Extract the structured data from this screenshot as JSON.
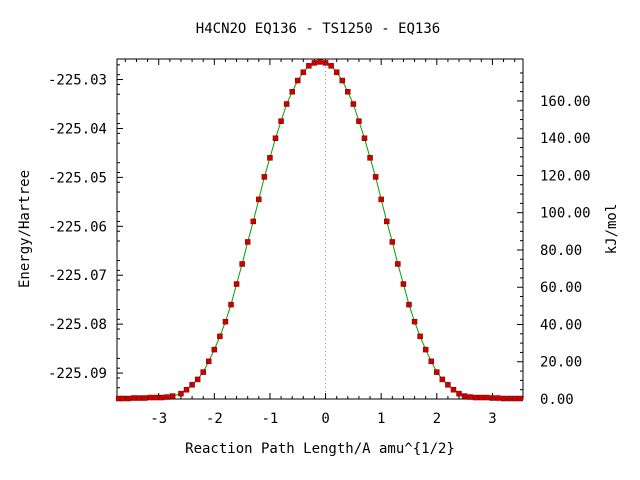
{
  "chart_data": {
    "type": "line",
    "title": "H4CN2O   EQ136 - TS1250 - EQ136",
    "xlabel": "Reaction Path Length/A amu^{1/2}",
    "ylabel": "Energy/Hartree",
    "y2label": "kJ/mol",
    "xlim": [
      -3.75,
      3.55
    ],
    "ylim": [
      -225.0953,
      -225.0258
    ],
    "y2lim": [
      0.0,
      182.5
    ],
    "x_ticks": [
      -3,
      -2,
      -1,
      0,
      1,
      2,
      3
    ],
    "x_tick_labels": [
      "-3",
      "-2",
      "-1",
      "0",
      "1",
      "2",
      "3"
    ],
    "y_ticks": [
      -225.03,
      -225.04,
      -225.05,
      -225.06,
      -225.07,
      -225.08,
      -225.09
    ],
    "y_tick_labels": [
      "-225.03",
      "-225.04",
      "-225.05",
      "-225.06",
      "-225.07",
      "-225.08",
      "-225.09"
    ],
    "y2_ticks": [
      0,
      20,
      40,
      60,
      80,
      100,
      120,
      140,
      160
    ],
    "y2_tick_labels": [
      "0.00",
      "20.00",
      "40.00",
      "60.00",
      "80.00",
      "100.00",
      "120.00",
      "140.00",
      "160.00"
    ],
    "grid": false,
    "legend": "none",
    "zero_line": true,
    "colors": {
      "line": "#00a000",
      "marker": "#cc0000",
      "frame": "#000000",
      "zero_line": "#999999"
    },
    "series": [
      {
        "line_color": "#00a000",
        "marker_color": "#cc0000",
        "x": [
          -3.72,
          -3.65,
          -3.55,
          -3.45,
          -3.35,
          -3.25,
          -3.15,
          -3.05,
          -2.95,
          -2.85,
          -2.75,
          -2.6,
          -2.5,
          -2.4,
          -2.3,
          -2.2,
          -2.1,
          -2.0,
          -1.9,
          -1.8,
          -1.7,
          -1.6,
          -1.5,
          -1.4,
          -1.3,
          -1.2,
          -1.1,
          -1.0,
          -0.9,
          -0.8,
          -0.7,
          -0.6,
          -0.5,
          -0.4,
          -0.3,
          -0.2,
          -0.1,
          0.0,
          0.1,
          0.2,
          0.3,
          0.4,
          0.5,
          0.6,
          0.7,
          0.8,
          0.9,
          1.0,
          1.1,
          1.2,
          1.3,
          1.4,
          1.5,
          1.6,
          1.7,
          1.8,
          1.9,
          2.0,
          2.1,
          2.2,
          2.3,
          2.4,
          2.5,
          2.6,
          2.7,
          2.8,
          2.9,
          3.0,
          3.1,
          3.2,
          3.3,
          3.4,
          3.5
        ],
        "y": [
          -225.0952,
          -225.0952,
          -225.0952,
          -225.0951,
          -225.0951,
          -225.0951,
          -225.095,
          -225.095,
          -225.095,
          -225.0949,
          -225.0947,
          -225.0942,
          -225.0934,
          -225.0924,
          -225.0913,
          -225.0898,
          -225.0876,
          -225.0852,
          -225.0825,
          -225.0795,
          -225.076,
          -225.0718,
          -225.0677,
          -225.0632,
          -225.059,
          -225.0545,
          -225.0499,
          -225.046,
          -225.042,
          -225.0385,
          -225.035,
          -225.0325,
          -225.0302,
          -225.0285,
          -225.0272,
          -225.0266,
          -225.0264,
          -225.0266,
          -225.0272,
          -225.0285,
          -225.0302,
          -225.0325,
          -225.035,
          -225.0385,
          -225.042,
          -225.046,
          -225.0499,
          -225.0545,
          -225.059,
          -225.0632,
          -225.0677,
          -225.0718,
          -225.076,
          -225.0795,
          -225.0825,
          -225.0852,
          -225.0876,
          -225.0898,
          -225.0913,
          -225.0924,
          -225.0934,
          -225.0942,
          -225.0947,
          -225.0949,
          -225.095,
          -225.095,
          -225.095,
          -225.0951,
          -225.0951,
          -225.0952,
          -225.0952,
          -225.0952,
          -225.0952
        ]
      }
    ]
  }
}
